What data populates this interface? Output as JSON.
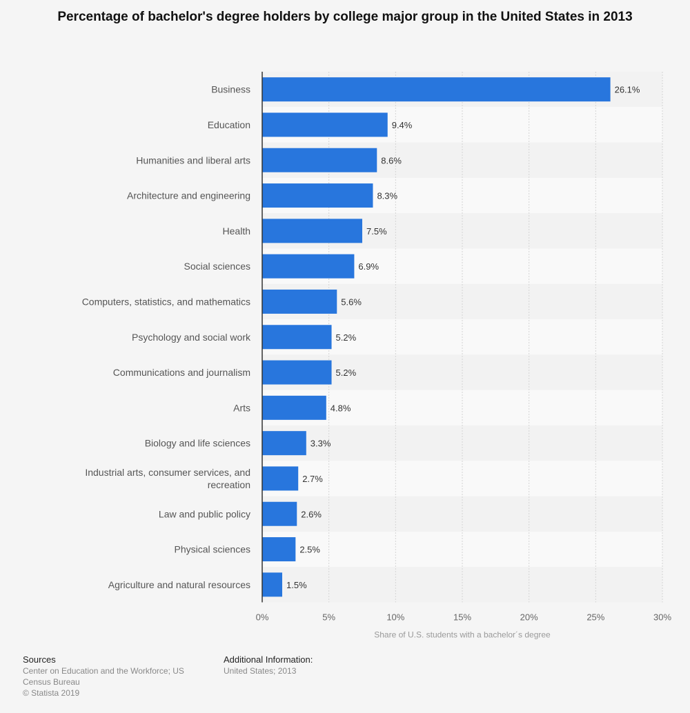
{
  "chart_data": {
    "type": "bar",
    "orientation": "horizontal",
    "title": "Percentage of bachelor's degree holders by college major group in the United States in 2013",
    "categories": [
      "Business",
      "Education",
      "Humanities and liberal arts",
      "Architecture and engineering",
      "Health",
      "Social sciences",
      "Computers, statistics, and mathematics",
      "Psychology and social work",
      "Communications and journalism",
      "Arts",
      "Biology and life sciences",
      "Industrial arts, consumer services, and recreation",
      "Law and public policy",
      "Physical sciences",
      "Agriculture and natural resources"
    ],
    "values": [
      26.1,
      9.4,
      8.6,
      8.3,
      7.5,
      6.9,
      5.6,
      5.2,
      5.2,
      4.8,
      3.3,
      2.7,
      2.6,
      2.5,
      1.5
    ],
    "data_labels": [
      "26.1%",
      "9.4%",
      "8.6%",
      "8.3%",
      "7.5%",
      "6.9%",
      "5.6%",
      "5.2%",
      "5.2%",
      "4.8%",
      "3.3%",
      "2.7%",
      "2.6%",
      "2.5%",
      "1.5%"
    ],
    "xlabel": "Share of U.S. students with a bachelor´s degree",
    "ylabel": "",
    "xlim": [
      0,
      30
    ],
    "xticks": [
      0,
      5,
      10,
      15,
      20,
      25,
      30
    ],
    "xtick_labels": [
      "0%",
      "5%",
      "10%",
      "15%",
      "20%",
      "25%",
      "30%"
    ],
    "grid": true,
    "bar_color": "#2876dd"
  },
  "footer": {
    "sources_heading": "Sources",
    "sources_lines": [
      "Center on Education and the Workforce; US",
      "Census Bureau",
      "© Statista 2019"
    ],
    "additional_heading": "Additional Information:",
    "additional_text": "United States; 2013"
  }
}
